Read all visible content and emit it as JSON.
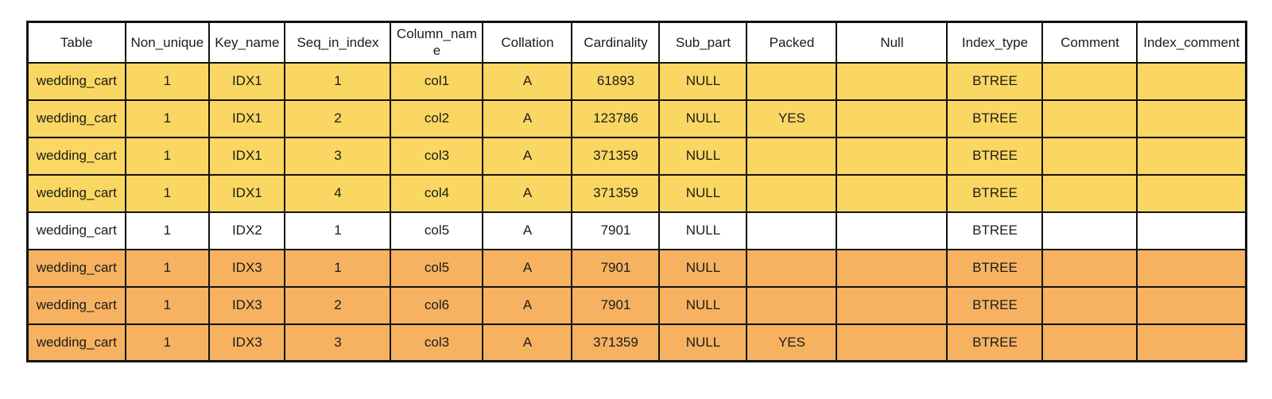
{
  "chart_data": {
    "type": "table",
    "columns": [
      "Table",
      "Non_unique",
      "Key_name",
      "Seq_in_index",
      "Column_name",
      "Collation",
      "Cardinality",
      "Sub_part",
      "Packed",
      "Null",
      "Index_type",
      "Comment",
      "Index_comment"
    ],
    "rows": [
      [
        "wedding_cart",
        "1",
        "IDX1",
        "1",
        "col1",
        "A",
        "61893",
        "NULL",
        "",
        "",
        "BTREE",
        "",
        ""
      ],
      [
        "wedding_cart",
        "1",
        "IDX1",
        "2",
        "col2",
        "A",
        "123786",
        "NULL",
        "YES",
        "",
        "BTREE",
        "",
        ""
      ],
      [
        "wedding_cart",
        "1",
        "IDX1",
        "3",
        "col3",
        "A",
        "371359",
        "NULL",
        "",
        "",
        "BTREE",
        "",
        ""
      ],
      [
        "wedding_cart",
        "1",
        "IDX1",
        "4",
        "col4",
        "A",
        "371359",
        "NULL",
        "",
        "",
        "BTREE",
        "",
        ""
      ],
      [
        "wedding_cart",
        "1",
        "IDX2",
        "1",
        "col5",
        "A",
        "7901",
        "NULL",
        "",
        "",
        "BTREE",
        "",
        ""
      ],
      [
        "wedding_cart",
        "1",
        "IDX3",
        "1",
        "col5",
        "A",
        "7901",
        "NULL",
        "",
        "",
        "BTREE",
        "",
        ""
      ],
      [
        "wedding_cart",
        "1",
        "IDX3",
        "2",
        "col6",
        "A",
        "7901",
        "NULL",
        "",
        "",
        "BTREE",
        "",
        ""
      ],
      [
        "wedding_cart",
        "1",
        "IDX3",
        "3",
        "col3",
        "A",
        "371359",
        "NULL",
        "YES",
        "",
        "BTREE",
        "",
        ""
      ]
    ],
    "row_highlights": [
      "yellow",
      "yellow",
      "yellow",
      "yellow",
      "none",
      "orange",
      "orange",
      "orange"
    ],
    "highlight_colors": {
      "yellow": "#FAD762",
      "orange": "#F6B261",
      "none": "#FFFFFF"
    },
    "border_color": "#121212",
    "header_background": "#FFFFFF",
    "grid": true,
    "title": ""
  }
}
